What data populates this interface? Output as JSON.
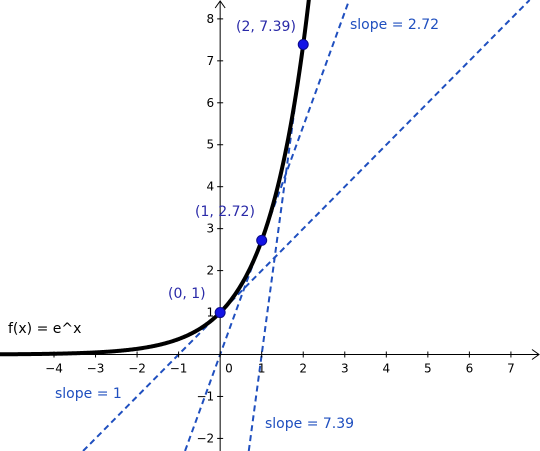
{
  "chart_data": {
    "type": "line",
    "title": "",
    "xlabel": "",
    "ylabel": "",
    "xlim": [
      -5.3,
      7.7
    ],
    "ylim": [
      -2.3,
      8.45
    ],
    "x_ticks": [
      -4,
      -3,
      -2,
      -1,
      0,
      1,
      2,
      3,
      4,
      5,
      6,
      7
    ],
    "y_ticks": [
      -2,
      -1,
      0,
      1,
      2,
      3,
      4,
      5,
      6,
      7,
      8
    ],
    "x_tick_labels": [
      "−4",
      "−3",
      "−2",
      "−1",
      "0",
      "1",
      "2",
      "3",
      "4",
      "5",
      "6",
      "7"
    ],
    "y_tick_labels": [
      "−2",
      "−1",
      "0",
      "1",
      "2",
      "3",
      "4",
      "5",
      "6",
      "7",
      "8"
    ],
    "grid": false,
    "function": {
      "label": "f(x) = e^x",
      "color": "#000000"
    },
    "points": [
      {
        "x": 0,
        "y": 1,
        "label": "(0, 1)"
      },
      {
        "x": 1,
        "y": 2.72,
        "label": "(1, 2.72)"
      },
      {
        "x": 2,
        "y": 7.39,
        "label": "(2, 7.39)"
      }
    ],
    "tangents": [
      {
        "x0": 0,
        "y0": 1,
        "slope": 1,
        "label": "slope = 1"
      },
      {
        "x0": 1,
        "y0": 2.72,
        "slope": 2.72,
        "label": "slope = 2.72"
      },
      {
        "x0": 2,
        "y0": 7.39,
        "slope": 7.39,
        "label": "slope = 7.39"
      }
    ],
    "colors": {
      "curve": "#000000",
      "tangent": "#1f4fbf",
      "point_fill": "#1414e6",
      "point_stroke": "#0a0a8a",
      "axis": "#000000"
    }
  }
}
